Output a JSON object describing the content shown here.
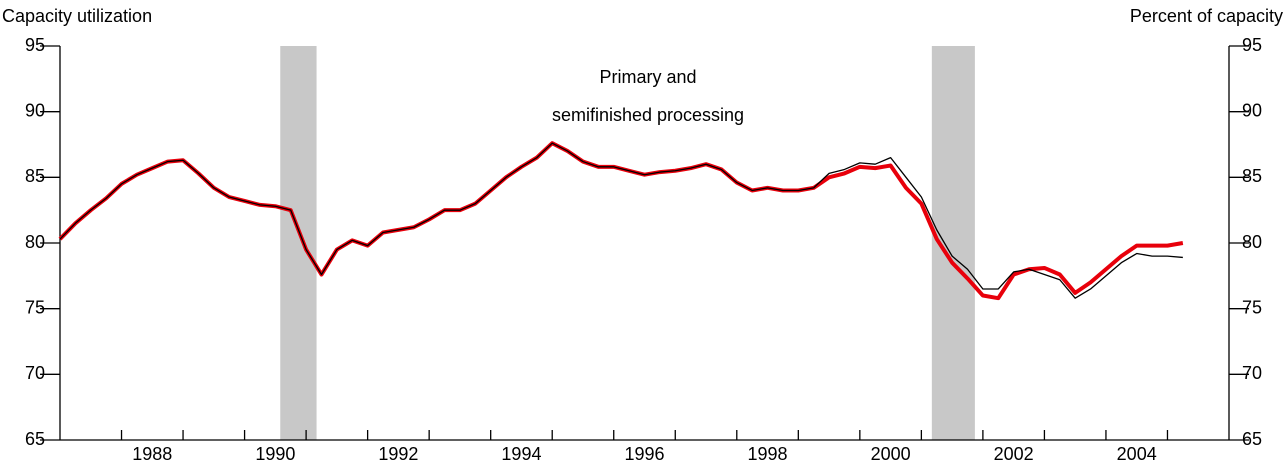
{
  "chart_data": {
    "type": "line",
    "title_left": "Capacity utilization",
    "title_right": "Percent of capacity",
    "annotation": [
      "Primary and",
      "semifinished processing"
    ],
    "x": [
      1987.0,
      1987.25,
      1987.5,
      1987.75,
      1988.0,
      1988.25,
      1988.5,
      1988.75,
      1989.0,
      1989.25,
      1989.5,
      1989.75,
      1990.0,
      1990.25,
      1990.5,
      1990.75,
      1991.0,
      1991.25,
      1991.5,
      1991.75,
      1992.0,
      1992.25,
      1992.5,
      1992.75,
      1993.0,
      1993.25,
      1993.5,
      1993.75,
      1994.0,
      1994.25,
      1994.5,
      1994.75,
      1995.0,
      1995.25,
      1995.5,
      1995.75,
      1996.0,
      1996.25,
      1996.5,
      1996.75,
      1997.0,
      1997.25,
      1997.5,
      1997.75,
      1998.0,
      1998.25,
      1998.5,
      1998.75,
      1999.0,
      1999.25,
      1999.5,
      1999.75,
      2000.0,
      2000.25,
      2000.5,
      2000.75,
      2001.0,
      2001.25,
      2001.5,
      2001.75,
      2002.0,
      2002.25,
      2002.5,
      2002.75,
      2003.0,
      2003.25,
      2003.5,
      2003.75,
      2004.0,
      2004.25,
      2004.5,
      2004.75,
      2005.0,
      2005.25
    ],
    "series": [
      {
        "color": "#e8000b",
        "width": 4,
        "values": [
          80.3,
          81.5,
          82.5,
          83.4,
          84.5,
          85.2,
          85.7,
          86.2,
          86.3,
          85.3,
          84.2,
          83.5,
          83.2,
          82.9,
          82.8,
          82.5,
          79.5,
          77.6,
          79.5,
          80.2,
          79.8,
          80.8,
          81.0,
          81.2,
          81.8,
          82.5,
          82.5,
          83.0,
          84.0,
          85.0,
          85.8,
          86.5,
          87.6,
          87.0,
          86.2,
          85.8,
          85.8,
          85.5,
          85.2,
          85.4,
          85.5,
          85.7,
          86.0,
          85.6,
          84.6,
          84.0,
          84.2,
          84.0,
          84.0,
          84.2,
          85.0,
          85.3,
          85.8,
          85.7,
          85.9,
          84.2,
          83.0,
          80.3,
          78.5,
          77.3,
          76.0,
          75.8,
          77.6,
          78.0,
          78.1,
          77.6,
          76.2,
          77.0,
          78.0,
          79.0,
          79.8,
          79.8,
          79.8,
          80.0
        ]
      },
      {
        "color": "#000000",
        "width": 1.3,
        "values": [
          80.3,
          81.5,
          82.5,
          83.4,
          84.5,
          85.2,
          85.7,
          86.2,
          86.3,
          85.3,
          84.2,
          83.5,
          83.2,
          82.9,
          82.8,
          82.5,
          79.5,
          77.6,
          79.5,
          80.2,
          79.8,
          80.8,
          81.0,
          81.2,
          81.8,
          82.5,
          82.5,
          83.0,
          84.0,
          85.0,
          85.8,
          86.5,
          87.6,
          87.0,
          86.2,
          85.8,
          85.8,
          85.5,
          85.2,
          85.4,
          85.5,
          85.7,
          86.0,
          85.6,
          84.6,
          84.0,
          84.2,
          84.0,
          84.0,
          84.2,
          85.3,
          85.6,
          86.1,
          86.0,
          86.5,
          85.0,
          83.5,
          81.0,
          79.0,
          78.0,
          76.5,
          76.5,
          77.8,
          78.0,
          77.6,
          77.2,
          75.8,
          76.5,
          77.5,
          78.5,
          79.2,
          79.0,
          79.0,
          78.9
        ]
      }
    ],
    "xlim": [
      1987,
      2006
    ],
    "xticks": [
      {
        "value": 1988.5,
        "label": "1988"
      },
      {
        "value": 1990.5,
        "label": "1990"
      },
      {
        "value": 1992.5,
        "label": "1992"
      },
      {
        "value": 1994.5,
        "label": "1994"
      },
      {
        "value": 1996.5,
        "label": "1996"
      },
      {
        "value": 1998.5,
        "label": "1998"
      },
      {
        "value": 2000.5,
        "label": "2000"
      },
      {
        "value": 2002.5,
        "label": "2002"
      },
      {
        "value": 2004.5,
        "label": "2004"
      }
    ],
    "xminor_ticks": [
      1988,
      1989,
      1990,
      1991,
      1992,
      1993,
      1994,
      1995,
      1996,
      1997,
      1998,
      1999,
      2000,
      2001,
      2002,
      2003,
      2004,
      2005
    ],
    "ylim": [
      65,
      95
    ],
    "yticks": [
      65,
      70,
      75,
      80,
      85,
      90,
      95
    ],
    "shaded_periods": [
      [
        1990.58,
        1991.17
      ],
      [
        2001.17,
        2001.87
      ]
    ],
    "shade_color": "#c8c8c8"
  }
}
